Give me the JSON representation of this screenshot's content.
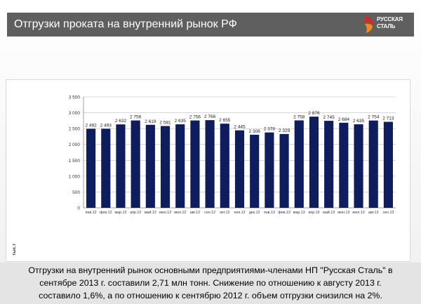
{
  "header": {
    "title": "Отгрузки проката на внутренний рынок РФ",
    "logo_line1": "РУССКАЯ",
    "logo_line2": "СТАЛЬ"
  },
  "chart_data": {
    "type": "bar",
    "ylabel": "тыс.т",
    "ylim": [
      0,
      3500
    ],
    "yticks": [
      "0",
      "500",
      "1 000",
      "1 500",
      "2 000",
      "2 500",
      "3 000",
      "3 500"
    ],
    "grid": true,
    "bar_color": "#0d1d5e",
    "categories": [
      "янв.12",
      "фев.12",
      "мар.12",
      "апр.12",
      "май.12",
      "июн.12",
      "июл.12",
      "авг.12",
      "сен.12",
      "окт.12",
      "ноя.12",
      "дек.12",
      "янв.13",
      "фев.13",
      "мар.13",
      "апр.13",
      "май.13",
      "июн.13",
      "июл.13",
      "авг.13",
      "сен.13"
    ],
    "values": [
      2492,
      2493,
      2632,
      2756,
      2619,
      2581,
      2635,
      2756,
      2766,
      2655,
      2445,
      2306,
      2378,
      2329,
      2758,
      2876,
      2745,
      2684,
      2635,
      2754,
      2713
    ],
    "value_labels": [
      "2 492",
      "2 493",
      "2 632",
      "2 756",
      "2 619",
      "2 581",
      "2 635",
      "2 756",
      "2 766",
      "2 655",
      "2 445",
      "2 306",
      "2 378",
      "2 329",
      "2 758",
      "2 876",
      "2 745",
      "2 684",
      "2 635",
      "2 754",
      "2 713"
    ]
  },
  "caption": {
    "line1": "Отгрузки на внутренний рынок основными предприятиями-членами НП \"Русская Сталь\" в",
    "line2": "сентябре 2013 г. составили 2,71 млн тонн. Снижение по отношению к августу 2013 г.",
    "line3": "составило 1,6%, а по отношению к сентябрю 2012 г. объем отгрузки снизился на 2%."
  },
  "colors": {
    "header_bg": "#5f5f5f",
    "logo_red": "#d9262a",
    "logo_orange": "#f08a1e",
    "caption_bg": "#e4e4e4"
  }
}
